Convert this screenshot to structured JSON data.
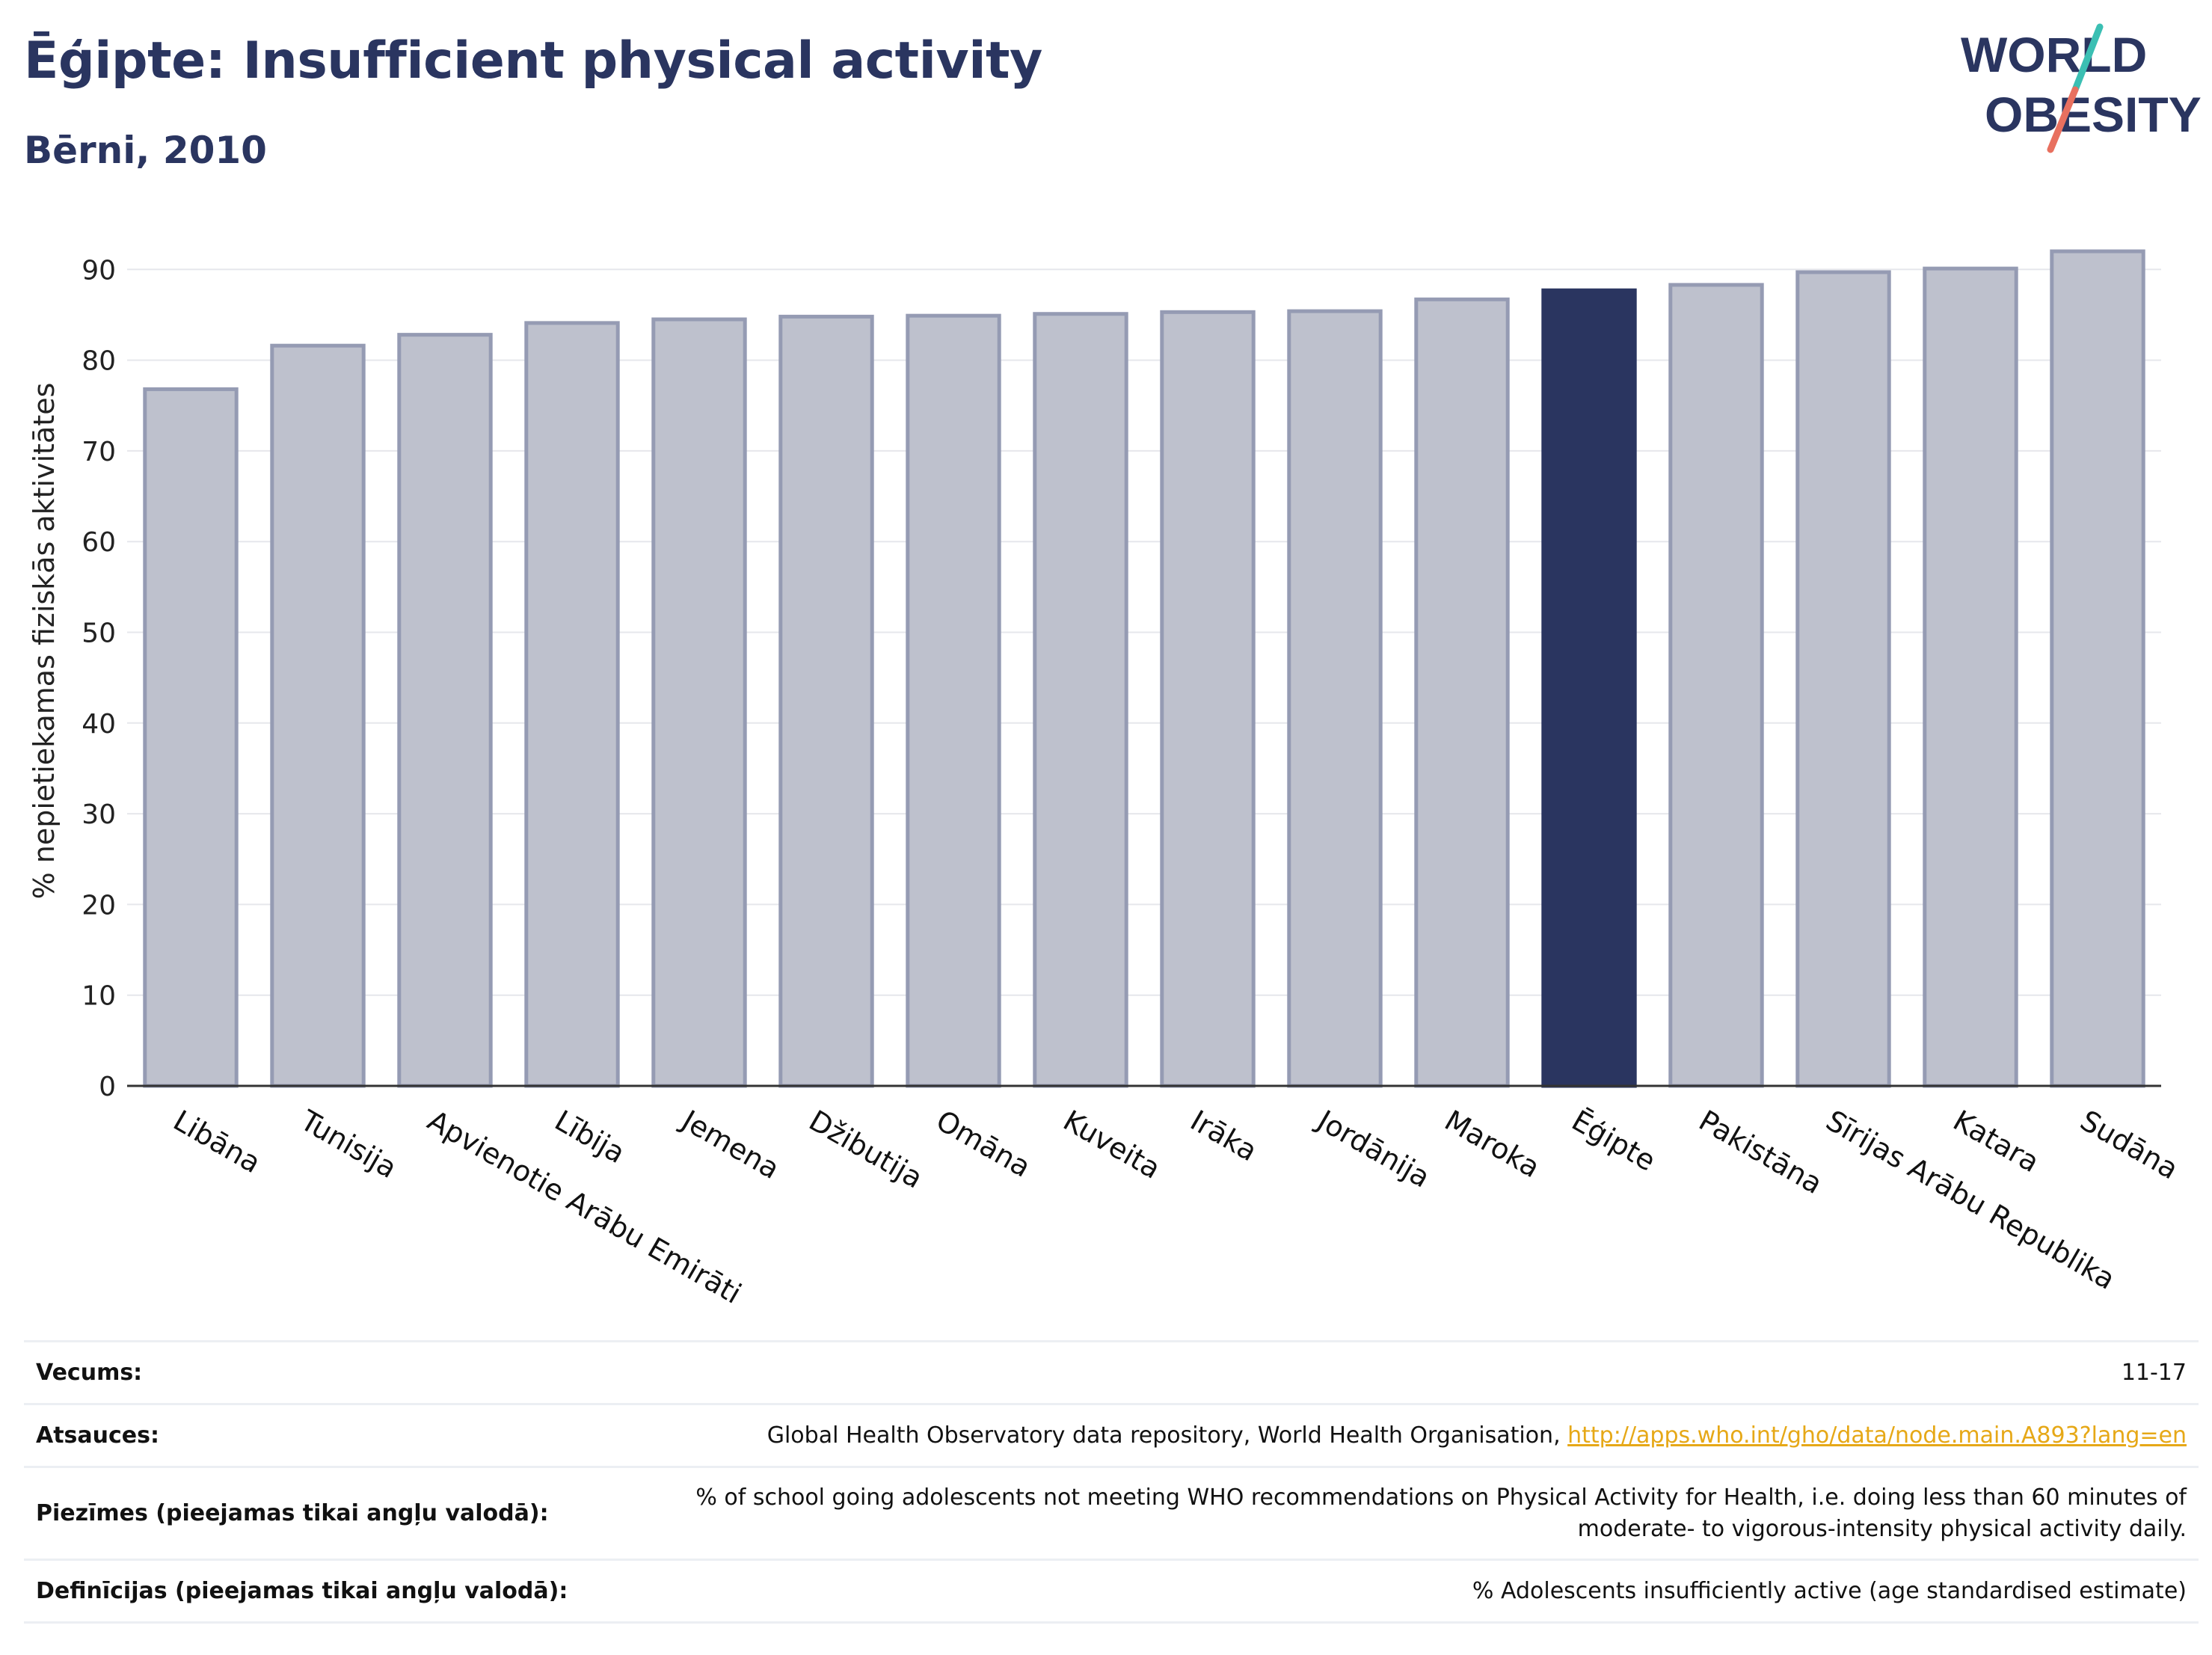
{
  "header": {
    "title": "Ēģipte: Insufficient physical activity",
    "subtitle": "Bērni, 2010"
  },
  "logo": {
    "line1": "WORLD",
    "line2": "OBESITY",
    "colors": {
      "text": "#2a3560",
      "slash_top": "#3bbfb3",
      "slash_bottom": "#e8705f"
    }
  },
  "chart_data": {
    "type": "bar",
    "title": "Ēģipte: Insufficient physical activity",
    "subtitle": "Bērni, 2010",
    "ylabel": "% nepietiekamas fiziskās aktivitātes",
    "xlabel": "",
    "ylim": [
      0,
      95
    ],
    "yticks": [
      0,
      10,
      20,
      30,
      40,
      50,
      60,
      70,
      80,
      90
    ],
    "grid": true,
    "categories": [
      "Libāna",
      "Tunisija",
      "Apvienotie Arābu Emirāti",
      "Lībija",
      "Jemena",
      "Džibutija",
      "Omāna",
      "Kuveita",
      "Irāka",
      "Jordānija",
      "Maroka",
      "Ēģipte",
      "Pakistāna",
      "Sīrijas Arābu Republika",
      "Katara",
      "Sudāna"
    ],
    "values": [
      76.8,
      81.6,
      82.8,
      84.1,
      84.5,
      84.8,
      84.9,
      85.1,
      85.3,
      85.4,
      86.7,
      87.7,
      88.3,
      89.7,
      90.1,
      92.0
    ],
    "highlight": "Ēģipte",
    "colors": {
      "bar": "#bec1cd",
      "bar_edge": "#959bb3",
      "highlight": "#2a3560",
      "grid": "#e6e7ec",
      "axis": "#333333"
    }
  },
  "info": [
    {
      "key": "Vecums:",
      "value": "11-17"
    },
    {
      "key": "Atsauces:",
      "value": "Global Health Observatory data repository, World Health Organisation, ",
      "link": "http://apps.who.int/gho/data/node.main.A893?lang=en"
    },
    {
      "key": "Piezīmes (pieejamas tikai angļu valodā):",
      "value": "% of school going adolescents not meeting WHO recommendations on Physical Activity for Health, i.e. doing less than 60 minutes of moderate- to vigorous-intensity physical activity daily."
    },
    {
      "key": "Definīcijas (pieejamas tikai angļu valodā):",
      "value": "% Adolescents insufficiently active (age standardised estimate)"
    }
  ]
}
